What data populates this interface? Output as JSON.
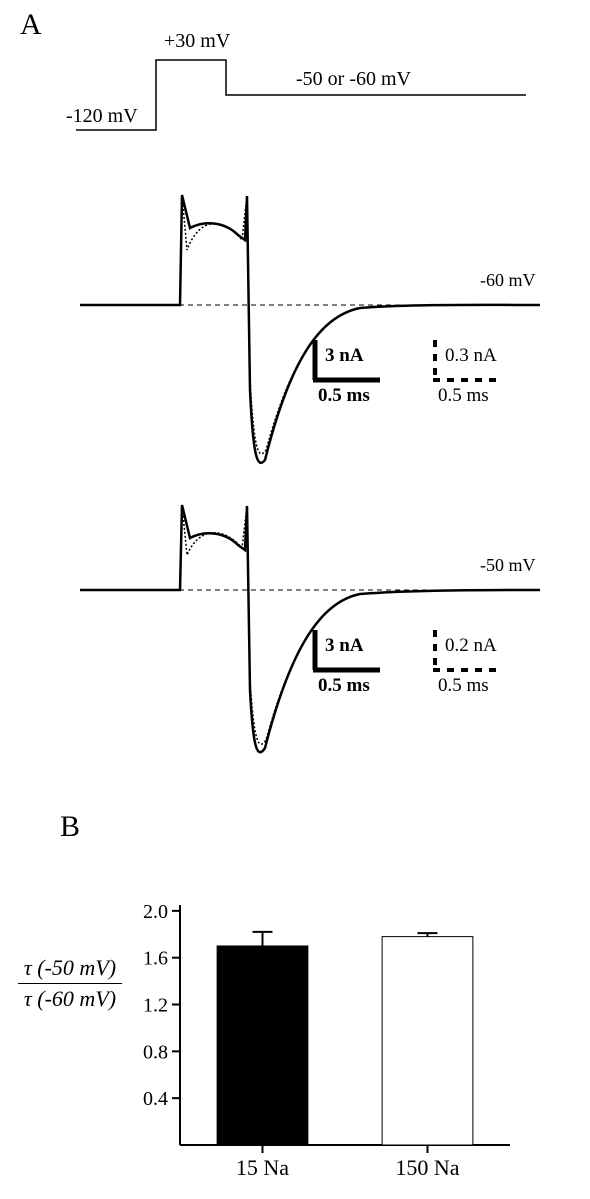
{
  "panelA": {
    "letter": "A",
    "protocol": {
      "holding_label": "-120 mV",
      "step_label": "+30 mV",
      "return_label": "-50 or -60 mV"
    },
    "traces": [
      {
        "return_label": "-60 mV",
        "scale_solid": {
          "y_label": "3 nA",
          "x_label": "0.5 ms"
        },
        "scale_dash": {
          "y_label": "0.3 nA",
          "x_label": "0.5 ms"
        }
      },
      {
        "return_label": "-50 mV",
        "scale_solid": {
          "y_label": "3 nA",
          "x_label": "0.5 ms"
        },
        "scale_dash": {
          "y_label": "0.2 nA",
          "x_label": "0.5 ms"
        }
      }
    ]
  },
  "panelB": {
    "letter": "B",
    "ratio_label_top": "τ (-50 mV)",
    "ratio_label_bot": "τ (-60 mV)",
    "chart": {
      "type": "bar",
      "categories": [
        "15 Na",
        "150 Na"
      ],
      "values": [
        1.7,
        1.78
      ],
      "errors": [
        0.12,
        0.03
      ],
      "bar_colors": [
        "#000000",
        "#ffffff"
      ],
      "bar_stroke": "#000000",
      "ylim": [
        0,
        2.05
      ],
      "yticks": [
        0.4,
        0.8,
        1.2,
        1.6,
        2.0
      ],
      "bar_width": 0.55
    }
  },
  "colors": {
    "background": "#ffffff",
    "ink": "#000000"
  }
}
